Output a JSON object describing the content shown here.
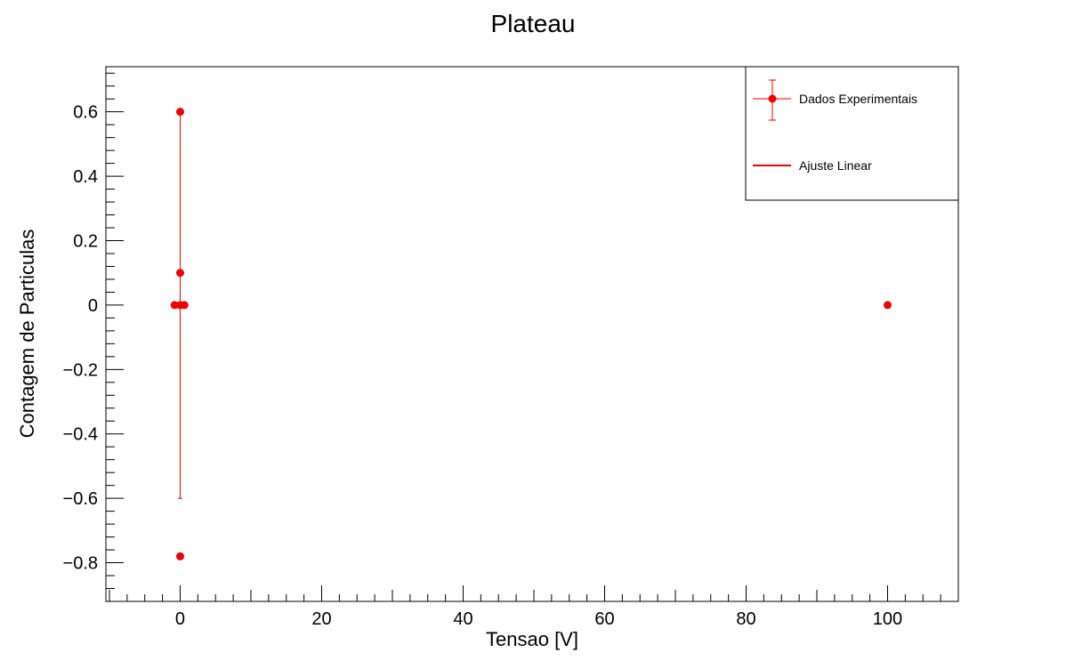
{
  "chart_data": {
    "type": "scatter",
    "title": "Plateau",
    "xlabel": "Tensao [V]",
    "ylabel": "Contagem de Particulas",
    "xlim": [
      -10.5,
      110
    ],
    "ylim": [
      -0.92,
      0.74
    ],
    "x_ticks": [
      0,
      20,
      40,
      60,
      80,
      100
    ],
    "y_ticks": [
      -0.8,
      -0.6,
      -0.4,
      -0.2,
      0,
      0.2,
      0.4,
      0.6
    ],
    "x_tick_labels": [
      "0",
      "20",
      "40",
      "60",
      "80",
      "100"
    ],
    "y_tick_labels": [
      "−0.8",
      "−0.6",
      "−0.4",
      "−0.2",
      "0",
      "0.2",
      "0.4",
      "0.6"
    ],
    "grid": false,
    "legend": {
      "position": "top-right",
      "entries": [
        "Dados Experimentais",
        "Ajuste Linear"
      ]
    },
    "series": [
      {
        "name": "Dados Experimentais",
        "color": "#ee0000",
        "points": [
          {
            "x": 0,
            "y": 0.6,
            "yerr": 0
          },
          {
            "x": 0,
            "y": 0.1,
            "yerr": 0
          },
          {
            "x": -0.8,
            "y": 0,
            "yerr": 0
          },
          {
            "x": 0,
            "y": 0,
            "yerr": 0.6
          },
          {
            "x": 0.6,
            "y": 0,
            "yerr": 0
          },
          {
            "x": 0,
            "y": -0.78,
            "yerr": 0
          },
          {
            "x": 100,
            "y": 0,
            "yerr": 0
          }
        ]
      },
      {
        "name": "Ajuste Linear",
        "color": "#ee0000",
        "points": []
      }
    ]
  }
}
